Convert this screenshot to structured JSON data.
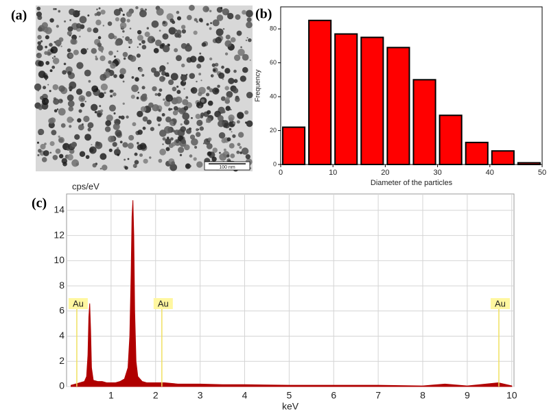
{
  "chart_data": [
    {
      "type": "image",
      "label": "(a)",
      "scale_bar_label": "100 nm"
    },
    {
      "type": "histogram",
      "label": "(b)",
      "xlabel": "Diameter of the particles",
      "ylabel": "Frequency",
      "bins": [
        0,
        5,
        10,
        15,
        20,
        25,
        30,
        35,
        40,
        45,
        50
      ],
      "values": [
        22,
        85,
        77,
        75,
        69,
        50,
        29,
        13,
        8,
        1
      ],
      "color": "#ff0000",
      "xlim": [
        0,
        50
      ],
      "xticks": [
        0,
        10,
        20,
        30,
        40,
        50
      ],
      "ylim": [
        0,
        93
      ],
      "yticks": [
        0,
        20,
        40,
        60,
        80
      ]
    },
    {
      "type": "area",
      "label": "(c)",
      "xlabel": "keV",
      "ylabel": "cps/eV",
      "color": "#b00000",
      "grid": true,
      "x": [
        0.1,
        0.2,
        0.3,
        0.4,
        0.45,
        0.48,
        0.5,
        0.52,
        0.54,
        0.56,
        0.6,
        0.7,
        0.8,
        0.9,
        1.0,
        1.1,
        1.2,
        1.3,
        1.38,
        1.42,
        1.45,
        1.47,
        1.49,
        1.51,
        1.53,
        1.56,
        1.6,
        1.7,
        1.8,
        2.0,
        2.2,
        2.5,
        3.0,
        3.5,
        4.0,
        5.0,
        6.0,
        7.0,
        8.0,
        8.5,
        9.0,
        9.7,
        10.0
      ],
      "values": [
        0.1,
        0.2,
        0.3,
        0.4,
        0.8,
        2.5,
        5.5,
        6.6,
        4.5,
        1.5,
        0.5,
        0.4,
        0.4,
        0.3,
        0.3,
        0.3,
        0.4,
        0.6,
        1.5,
        4,
        9,
        13.5,
        14.8,
        12,
        6,
        2,
        0.8,
        0.4,
        0.3,
        0.3,
        0.3,
        0.2,
        0.2,
        0.15,
        0.15,
        0.1,
        0.1,
        0.1,
        0.05,
        0.2,
        0.05,
        0.3,
        0.05
      ],
      "xlim": [
        0,
        10.05
      ],
      "xticks": [
        1,
        2,
        3,
        4,
        5,
        6,
        7,
        8,
        9,
        10
      ],
      "ylim": [
        0,
        15.3
      ],
      "yticks": [
        0,
        2,
        4,
        6,
        8,
        10,
        12,
        14
      ],
      "annotations": [
        {
          "text": "Au",
          "x": 0.23
        },
        {
          "text": "Au",
          "x": 2.14
        },
        {
          "text": "Au",
          "x": 9.71
        }
      ]
    }
  ]
}
